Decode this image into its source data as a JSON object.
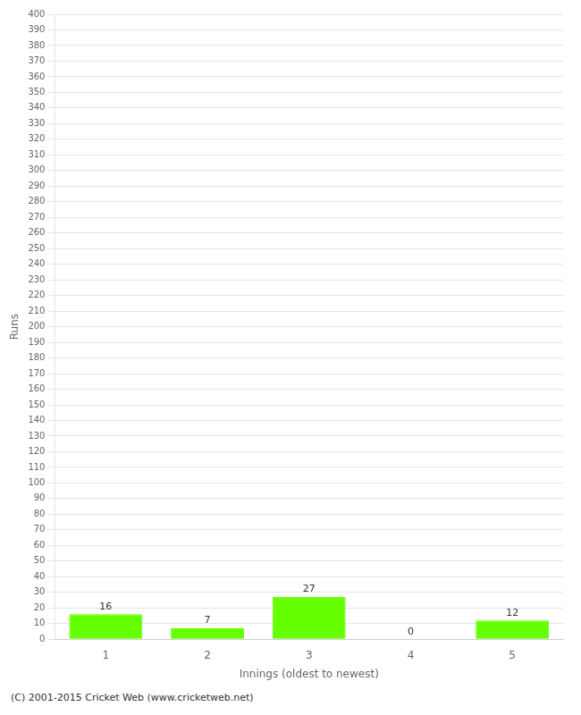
{
  "chart_data": {
    "type": "bar",
    "xlabel": "Innings (oldest to newest)",
    "ylabel": "Runs",
    "footer": "(C) 2001-2015 Cricket Web (www.cricketweb.net)",
    "categories": [
      1,
      2,
      3,
      4,
      5
    ],
    "values": [
      16,
      7,
      27,
      0,
      12
    ],
    "color": "#66ff00",
    "ylim": [
      0,
      400
    ],
    "yticks": [
      0,
      10,
      20,
      30,
      40,
      50,
      60,
      70,
      80,
      90,
      100,
      110,
      120,
      130,
      140,
      150,
      160,
      170,
      180,
      190,
      200,
      210,
      220,
      230,
      240,
      250,
      260,
      270,
      280,
      290,
      300,
      310,
      320,
      330,
      340,
      350,
      360,
      370,
      380,
      390,
      400
    ],
    "grid": true,
    "data_labels": true
  }
}
